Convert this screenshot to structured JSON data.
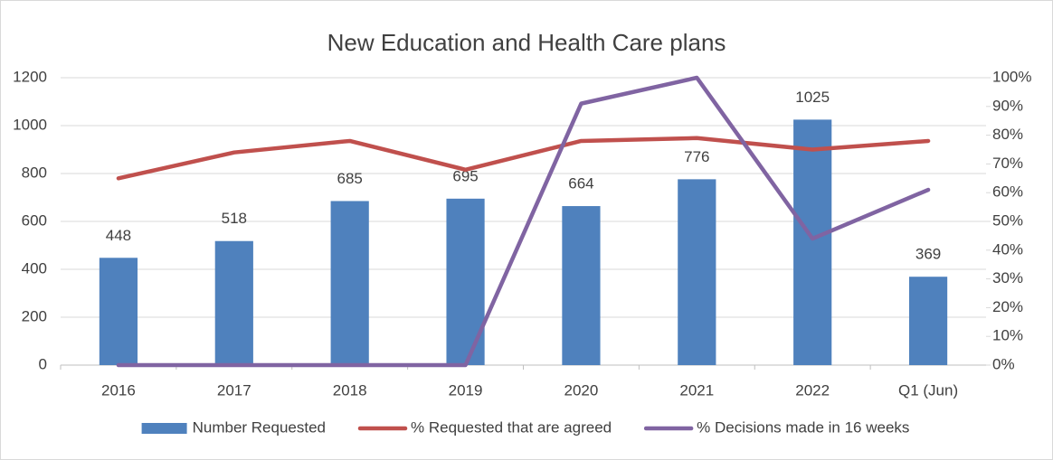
{
  "chart_data": {
    "type": "bar",
    "title": "New Education and Health Care plans",
    "categories": [
      "2016",
      "2017",
      "2018",
      "2019",
      "2020",
      "2021",
      "2022",
      "Q1 (Jun)"
    ],
    "series": [
      {
        "name": "Number Requested",
        "color": "#4f81bd",
        "type": "bar",
        "axis": "y",
        "values": [
          448,
          518,
          685,
          695,
          664,
          776,
          1025,
          369
        ]
      },
      {
        "name": "% Requested that are agreed",
        "color": "#c0504d",
        "type": "line",
        "axis": "y2",
        "values": [
          65,
          74,
          78,
          68,
          78,
          79,
          75,
          78
        ]
      },
      {
        "name": "% Decisions made in 16 weeks",
        "color": "#8064a2",
        "type": "line",
        "axis": "y2",
        "values": [
          0,
          0,
          0,
          0,
          91,
          100,
          44,
          61
        ]
      }
    ],
    "ylim": [
      0,
      1200
    ],
    "yticks": [
      0,
      200,
      400,
      600,
      800,
      1000,
      1200
    ],
    "y2lim": [
      0,
      100
    ],
    "y2ticks": [
      {
        "value": 0,
        "label": "0%"
      },
      {
        "value": 10,
        "label": "10%"
      },
      {
        "value": 20,
        "label": "20%"
      },
      {
        "value": 30,
        "label": "30%"
      },
      {
        "value": 40,
        "label": "40%"
      },
      {
        "value": 50,
        "label": "50%"
      },
      {
        "value": 60,
        "label": "60%"
      },
      {
        "value": 70,
        "label": "70%"
      },
      {
        "value": 80,
        "label": "80%"
      },
      {
        "value": 90,
        "label": "90%"
      },
      {
        "value": 100,
        "label": "100%"
      }
    ],
    "legend": "bottom"
  }
}
